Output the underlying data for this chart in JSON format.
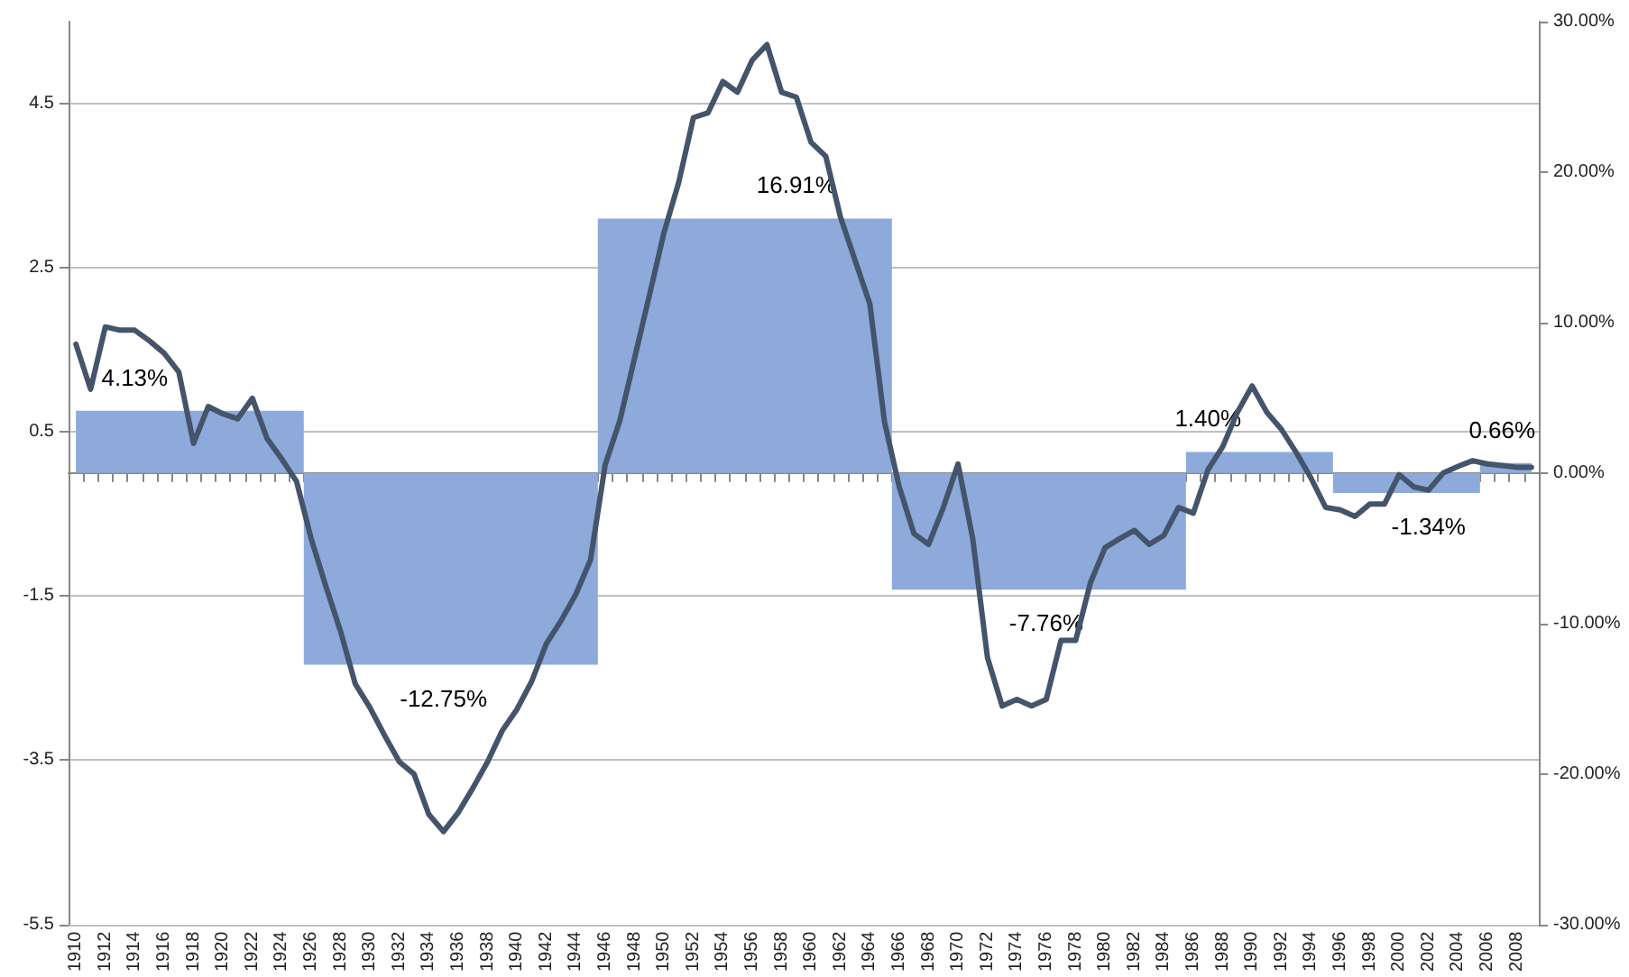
{
  "chart_data": {
    "type": "line",
    "categories": [
      "1910",
      null,
      "1912",
      null,
      "1914",
      null,
      "1916",
      null,
      "1918",
      null,
      "1920",
      null,
      "1922",
      null,
      "1924",
      null,
      "1926",
      null,
      "1928",
      null,
      "1930",
      null,
      "1932",
      null,
      "1934",
      null,
      "1936",
      null,
      "1938",
      null,
      "1940",
      null,
      "1942",
      null,
      "1944",
      null,
      "1946",
      null,
      "1948",
      null,
      "1950",
      null,
      "1952",
      null,
      "1954",
      null,
      "1956",
      null,
      "1958",
      null,
      "1960",
      null,
      "1962",
      null,
      "1964",
      null,
      "1966",
      null,
      "1968",
      null,
      "1970",
      null,
      "1972",
      null,
      "1974",
      null,
      "1976",
      null,
      "1978",
      null,
      "1980",
      null,
      "1982",
      null,
      "1984",
      null,
      "1986",
      null,
      "1988",
      null,
      "1990",
      null,
      "1992",
      null,
      "1994",
      null,
      "1996",
      null,
      "1998",
      null,
      "2000",
      null,
      "2002",
      null,
      "2004",
      null,
      "2006",
      null,
      "2008",
      null
    ],
    "series": [
      {
        "type": "area",
        "axis": "y2",
        "color": "#8eaadb",
        "values": [
          4.13,
          4.13,
          4.13,
          4.13,
          4.13,
          4.13,
          4.13,
          4.13,
          4.13,
          4.13,
          4.13,
          4.13,
          4.13,
          4.13,
          4.13,
          4.13,
          -12.75,
          -12.75,
          -12.75,
          -12.75,
          -12.75,
          -12.75,
          -12.75,
          -12.75,
          -12.75,
          -12.75,
          -12.75,
          -12.75,
          -12.75,
          -12.75,
          -12.75,
          -12.75,
          -12.75,
          -12.75,
          -12.75,
          -12.75,
          16.91,
          16.91,
          16.91,
          16.91,
          16.91,
          16.91,
          16.91,
          16.91,
          16.91,
          16.91,
          16.91,
          16.91,
          16.91,
          16.91,
          16.91,
          16.91,
          16.91,
          16.91,
          16.91,
          16.91,
          -7.76,
          -7.76,
          -7.76,
          -7.76,
          -7.76,
          -7.76,
          -7.76,
          -7.76,
          -7.76,
          -7.76,
          -7.76,
          -7.76,
          -7.76,
          -7.76,
          -7.76,
          -7.76,
          -7.76,
          -7.76,
          -7.76,
          -7.76,
          1.4,
          1.4,
          1.4,
          1.4,
          1.4,
          1.4,
          1.4,
          1.4,
          1.4,
          1.4,
          -1.34,
          -1.34,
          -1.34,
          -1.34,
          -1.34,
          -1.34,
          -1.34,
          -1.34,
          -1.34,
          -1.34,
          0.66,
          0.66,
          0.66,
          0.66
        ],
        "value_labels": [
          null,
          null,
          null,
          null,
          "4.13%",
          null,
          null,
          null,
          null,
          null,
          null,
          null,
          null,
          null,
          null,
          null,
          null,
          null,
          null,
          null,
          null,
          null,
          null,
          null,
          null,
          "-12.75%",
          null,
          null,
          null,
          null,
          null,
          null,
          null,
          null,
          null,
          null,
          null,
          null,
          null,
          null,
          null,
          null,
          null,
          null,
          null,
          null,
          null,
          null,
          null,
          "16.91%",
          null,
          null,
          null,
          null,
          null,
          null,
          null,
          null,
          null,
          null,
          null,
          null,
          null,
          null,
          null,
          null,
          "-7.76%",
          null,
          null,
          null,
          null,
          null,
          null,
          null,
          null,
          null,
          null,
          "1.40%",
          null,
          null,
          null,
          null,
          null,
          null,
          null,
          null,
          null,
          null,
          null,
          null,
          null,
          null,
          "-1.34%",
          null,
          null,
          null,
          null,
          "0.66%",
          null,
          null
        ]
      },
      {
        "color": "#44546a",
        "values": [
          1.57,
          1.02,
          1.78,
          1.74,
          1.74,
          1.61,
          1.46,
          1.23,
          0.36,
          0.81,
          0.72,
          0.66,
          0.91,
          0.42,
          0.17,
          -0.1,
          -0.8,
          -1.38,
          -1.93,
          -2.57,
          -2.86,
          -3.2,
          -3.52,
          -3.67,
          -4.16,
          -4.37,
          -4.14,
          -3.84,
          -3.52,
          -3.14,
          -2.88,
          -2.54,
          -2.08,
          -1.8,
          -1.48,
          -1.06,
          0.1,
          0.64,
          1.4,
          2.16,
          2.93,
          3.54,
          4.33,
          4.39,
          4.77,
          4.64,
          5.03,
          5.22,
          4.64,
          4.58,
          4.03,
          3.86,
          3.12,
          2.59,
          2.06,
          0.62,
          -0.17,
          -0.74,
          -0.87,
          -0.42,
          0.11,
          -0.8,
          -2.25,
          -2.84,
          -2.76,
          -2.84,
          -2.76,
          -2.04,
          -2.04,
          -1.34,
          -0.91,
          -0.8,
          -0.7,
          -0.87,
          -0.76,
          -0.42,
          -0.49,
          0.04,
          0.32,
          0.74,
          1.06,
          0.74,
          0.53,
          0.25,
          -0.06,
          -0.42,
          -0.45,
          -0.53,
          -0.38,
          -0.38,
          -0.02,
          -0.17,
          -0.21,
          0,
          0.08,
          0.15,
          0.11,
          0.09,
          0.07,
          0.07
        ]
      }
    ],
    "ylim": [
      -5.5,
      5.5
    ],
    "yticks": [
      -5.5,
      -3.5,
      -1.5,
      0.5,
      2.5,
      4.5
    ],
    "y2lim": [
      -30,
      30
    ],
    "y2ticks": [
      {
        "value": -30,
        "label": "-30.00%"
      },
      {
        "value": -20,
        "label": "-20.00%"
      },
      {
        "value": -10,
        "label": "-10.00%"
      },
      {
        "value": 0,
        "label": "0.00%"
      },
      {
        "value": 10,
        "label": "10.00%"
      },
      {
        "value": 20,
        "label": "20.00%"
      },
      {
        "value": 30,
        "label": "30.00%"
      }
    ],
    "grid": "y",
    "line_style": "solid"
  }
}
